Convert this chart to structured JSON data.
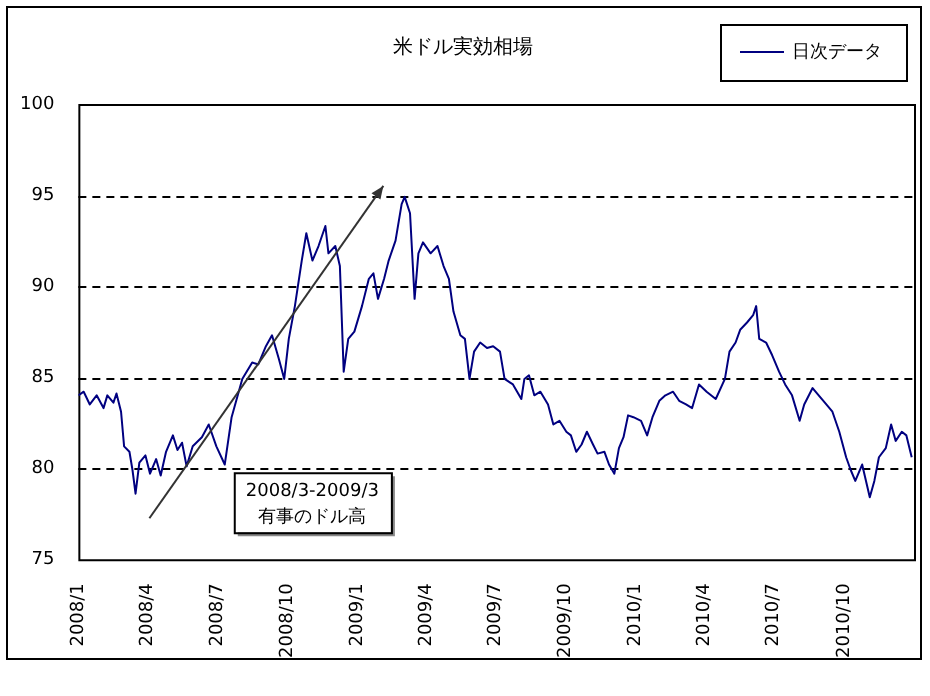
{
  "chart_data": {
    "type": "line",
    "title": "米ドル実効相場",
    "x": [
      "2008-01-01",
      "2008-01-08",
      "2008-01-16",
      "2008-01-25",
      "2008-02-03",
      "2008-02-08",
      "2008-02-16",
      "2008-02-20",
      "2008-02-26",
      "2008-03-01",
      "2008-03-08",
      "2008-03-12",
      "2008-03-16",
      "2008-03-21",
      "2008-03-29",
      "2008-04-04",
      "2008-04-12",
      "2008-04-18",
      "2008-04-25",
      "2008-05-04",
      "2008-05-10",
      "2008-05-16",
      "2008-05-22",
      "2008-05-30",
      "2008-06-11",
      "2008-06-20",
      "2008-06-30",
      "2008-07-11",
      "2008-07-20",
      "2008-08-03",
      "2008-08-16",
      "2008-08-24",
      "2008-09-03",
      "2008-09-11",
      "2008-09-20",
      "2008-09-27",
      "2008-10-03",
      "2008-10-11",
      "2008-10-20",
      "2008-10-26",
      "2008-11-03",
      "2008-11-11",
      "2008-11-20",
      "2008-11-24",
      "2008-12-03",
      "2008-12-09",
      "2008-12-14",
      "2008-12-20",
      "2008-12-28",
      "2009-01-07",
      "2009-01-16",
      "2009-01-22",
      "2009-01-28",
      "2009-02-05",
      "2009-02-11",
      "2009-02-20",
      "2009-02-28",
      "2009-03-04",
      "2009-03-11",
      "2009-03-17",
      "2009-03-22",
      "2009-03-28",
      "2009-04-07",
      "2009-04-16",
      "2009-04-24",
      "2009-05-01",
      "2009-05-07",
      "2009-05-16",
      "2009-05-22",
      "2009-05-28",
      "2009-06-03",
      "2009-06-11",
      "2009-06-20",
      "2009-06-28",
      "2009-07-07",
      "2009-07-13",
      "2009-07-24",
      "2009-08-04",
      "2009-08-08",
      "2009-08-14",
      "2009-08-21",
      "2009-08-29",
      "2009-09-08",
      "2009-09-15",
      "2009-09-23",
      "2009-10-02",
      "2009-10-08",
      "2009-10-15",
      "2009-10-22",
      "2009-10-29",
      "2009-11-06",
      "2009-11-12",
      "2009-11-21",
      "2009-11-27",
      "2009-12-04",
      "2009-12-10",
      "2009-12-16",
      "2009-12-22",
      "2009-12-29",
      "2010-01-08",
      "2010-01-16",
      "2010-01-23",
      "2010-02-01",
      "2010-02-09",
      "2010-02-19",
      "2010-02-27",
      "2010-03-08",
      "2010-03-16",
      "2010-03-25",
      "2010-04-04",
      "2010-04-16",
      "2010-04-28",
      "2010-05-04",
      "2010-05-12",
      "2010-05-18",
      "2010-05-27",
      "2010-06-04",
      "2010-06-08",
      "2010-06-12",
      "2010-06-21",
      "2010-06-29",
      "2010-07-08",
      "2010-07-16",
      "2010-07-25",
      "2010-08-04",
      "2010-08-10",
      "2010-08-21",
      "2010-08-29",
      "2010-09-08",
      "2010-09-16",
      "2010-09-25",
      "2010-10-04",
      "2010-10-10",
      "2010-10-16",
      "2010-10-25",
      "2010-11-04",
      "2010-11-10",
      "2010-11-16",
      "2010-11-25",
      "2010-12-02",
      "2010-12-08",
      "2010-12-16",
      "2010-12-22",
      "2010-12-29"
    ],
    "series": [
      {
        "name": "日次データ",
        "color": "#000080",
        "values": [
          84.0,
          84.2,
          83.5,
          84.0,
          83.3,
          84.0,
          83.6,
          84.1,
          83.1,
          81.2,
          80.9,
          79.9,
          78.6,
          80.3,
          80.7,
          79.7,
          80.5,
          79.6,
          80.9,
          81.8,
          81.0,
          81.4,
          80.1,
          81.2,
          81.7,
          82.4,
          81.2,
          80.2,
          82.8,
          84.9,
          85.8,
          85.7,
          86.7,
          87.3,
          86.0,
          84.9,
          87.1,
          88.9,
          91.4,
          92.9,
          91.4,
          92.2,
          93.3,
          91.8,
          92.2,
          91.1,
          85.3,
          87.1,
          87.5,
          88.9,
          90.4,
          90.7,
          89.3,
          90.4,
          91.4,
          92.5,
          94.5,
          94.9,
          94.0,
          89.3,
          91.8,
          92.4,
          91.8,
          92.2,
          91.1,
          90.4,
          88.6,
          87.3,
          87.1,
          84.9,
          86.4,
          86.9,
          86.6,
          86.7,
          86.4,
          84.9,
          84.6,
          83.8,
          84.9,
          85.1,
          84.0,
          84.2,
          83.5,
          82.4,
          82.6,
          82.0,
          81.8,
          80.9,
          81.3,
          82.0,
          81.3,
          80.8,
          80.9,
          80.2,
          79.7,
          81.1,
          81.7,
          82.9,
          82.8,
          82.6,
          81.8,
          82.8,
          83.7,
          84.0,
          84.2,
          83.7,
          83.5,
          83.3,
          84.6,
          84.2,
          83.8,
          84.9,
          86.4,
          86.9,
          87.6,
          88.0,
          88.4,
          88.9,
          87.1,
          86.9,
          86.2,
          85.3,
          84.6,
          84.0,
          82.6,
          83.5,
          84.4,
          84.0,
          83.5,
          83.1,
          82.0,
          80.6,
          79.9,
          79.3,
          80.2,
          78.4,
          79.3,
          80.6,
          81.1,
          82.4,
          81.5,
          82.0,
          81.8,
          80.6
        ]
      }
    ],
    "xlim": [
      "2008-01-01",
      "2011-01-01"
    ],
    "xticks": [
      {
        "value": "2008-01-01",
        "label": "2008/1"
      },
      {
        "value": "2008-04-01",
        "label": "2008/4"
      },
      {
        "value": "2008-07-01",
        "label": "2008/7"
      },
      {
        "value": "2008-10-01",
        "label": "2008/10"
      },
      {
        "value": "2009-01-01",
        "label": "2009/1"
      },
      {
        "value": "2009-04-01",
        "label": "2009/4"
      },
      {
        "value": "2009-07-01",
        "label": "2009/7"
      },
      {
        "value": "2009-10-01",
        "label": "2009/10"
      },
      {
        "value": "2010-01-01",
        "label": "2010/1"
      },
      {
        "value": "2010-04-01",
        "label": "2010/4"
      },
      {
        "value": "2010-07-01",
        "label": "2010/7"
      },
      {
        "value": "2010-10-01",
        "label": "2010/10"
      }
    ],
    "ylim": [
      75,
      100
    ],
    "yticks": [
      75,
      80,
      85,
      90,
      95,
      100
    ],
    "grid": "y",
    "legend": "top right",
    "marker": "none",
    "line_style": "solid",
    "annotations": [
      "2008/3-2009/3\n有事のドル高"
    ]
  }
}
